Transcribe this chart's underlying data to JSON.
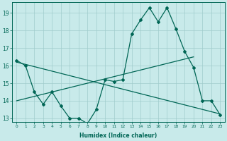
{
  "xlabel": "Humidex (Indice chaleur)",
  "x": [
    0,
    1,
    2,
    3,
    4,
    5,
    6,
    7,
    8,
    9,
    10,
    11,
    12,
    13,
    14,
    15,
    16,
    17,
    18,
    19,
    20,
    21,
    22,
    23
  ],
  "curve1": [
    16.3,
    16.0,
    14.5,
    13.8,
    14.5,
    13.7,
    13.0,
    13.0,
    12.7,
    13.5,
    15.2,
    15.1,
    15.2,
    17.8,
    18.6,
    19.3,
    18.5,
    19.3,
    18.1,
    16.8,
    15.9,
    14.0,
    14.0,
    13.2
  ],
  "trend1_x": [
    0,
    20
  ],
  "trend1_y": [
    14.0,
    16.5
  ],
  "trend2_x": [
    0,
    23
  ],
  "trend2_y": [
    16.2,
    13.25
  ],
  "ylim": [
    12.8,
    19.6
  ],
  "yticks": [
    13,
    14,
    15,
    16,
    17,
    18,
    19
  ],
  "xlim": [
    -0.5,
    23.5
  ],
  "bg_color": "#c8eaea",
  "grid_color": "#a0cccc",
  "line_color": "#006655",
  "marker": "D",
  "markersize": 2.0,
  "linewidth": 0.9
}
